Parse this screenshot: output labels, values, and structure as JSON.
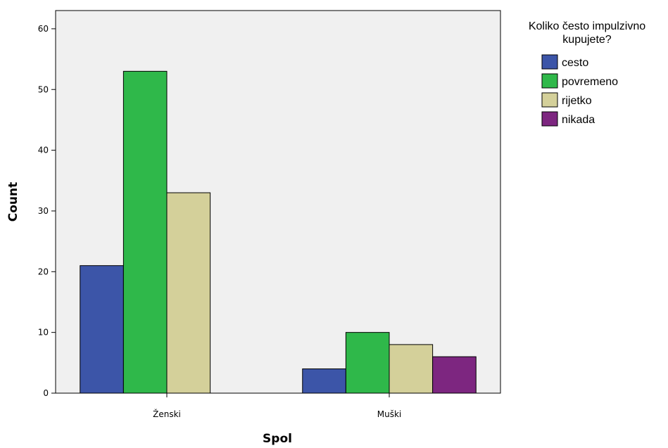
{
  "chart_data": {
    "type": "bar",
    "xlabel": "Spol",
    "ylabel": "Count",
    "categories": [
      "Ženski",
      "Muški"
    ],
    "series": [
      {
        "name": "cesto",
        "values": [
          21,
          4
        ],
        "color": "#3c55a8"
      },
      {
        "name": "povremeno",
        "values": [
          53,
          10
        ],
        "color": "#2fb84a"
      },
      {
        "name": "rijetko",
        "values": [
          33,
          8
        ],
        "color": "#d4d09a"
      },
      {
        "name": "nikada",
        "values": [
          0,
          6
        ],
        "color": "#7d2680"
      }
    ],
    "ylim": [
      0,
      63
    ],
    "yticks": [
      0,
      10,
      20,
      30,
      40,
      50,
      60
    ],
    "legend": {
      "title_lines": [
        "Koliko često impulzivno",
        "kupujete?"
      ],
      "position": "right"
    },
    "plot_background": "#f0f0f0",
    "grid": false
  }
}
